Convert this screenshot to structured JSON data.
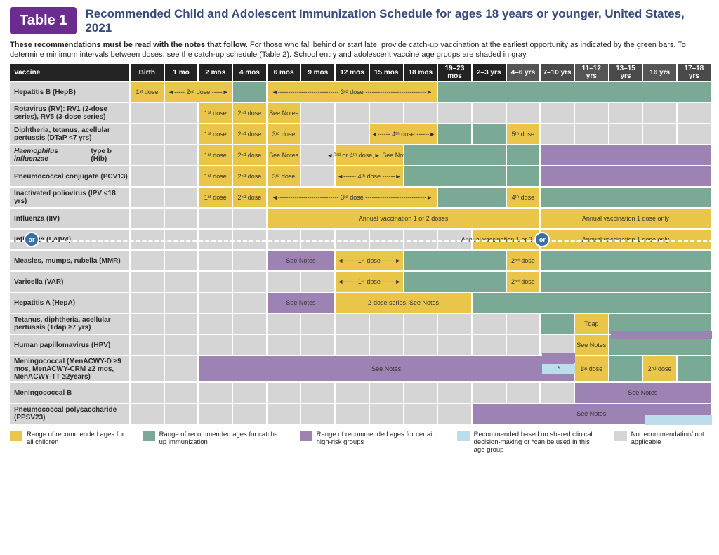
{
  "badge": "Table 1",
  "title": "Recommended Child and Adolescent Immunization Schedule for ages 18 years or younger, United States, 2021",
  "intro_bold": "These recommendations must be read with the notes that follow.",
  "intro_rest": " For those who fall behind or start late, provide catch-up vaccination at the earliest opportunity as indicated by the green bars. To determine minimum intervals between doses, see the catch-up schedule (Table 2). School entry and adolescent vaccine age groups are shaded in gray.",
  "colors": {
    "yellow": "#e9c649",
    "green": "#7aa995",
    "purple": "#9d83b3",
    "lblue": "#bcdde9",
    "gray": "#d5d5d5",
    "header_dark": "#232323",
    "badge_purple": "#6a2c8e",
    "title_blue": "#394b7a",
    "or_blue": "#3a6fa5"
  },
  "columns": [
    "Vaccine",
    "Birth",
    "1 mo",
    "2 mos",
    "4 mos",
    "6 mos",
    "9 mos",
    "12 mos",
    "15 mos",
    "18 mos",
    "19–23 mos",
    "2–3 yrs",
    "4–6 yrs",
    "7–10 yrs",
    "11–12 yrs",
    "13–15 yrs",
    "16 yrs",
    "17–18 yrs"
  ],
  "column_shade": [
    "",
    "",
    "",
    "",
    "",
    "",
    "",
    "",
    "",
    "",
    "",
    "",
    "s1",
    "s2",
    "s1",
    "s2",
    "s1",
    "s2"
  ],
  "vaccines": [
    {
      "name": "Hepatitis B (HepB)",
      "cells": [
        {
          "span": 1,
          "c": "yellow",
          "t": "1ˢᵗ dose"
        },
        {
          "span": 2,
          "c": "yellow",
          "t": "◄----- 2ⁿᵈ dose -----►"
        },
        {
          "span": 1,
          "c": "green"
        },
        {
          "span": 5,
          "c": "yellow",
          "t": "◄----------------------------- 3ʳᵈ dose -----------------------------►"
        },
        {
          "span": 8,
          "c": "green"
        }
      ]
    },
    {
      "name": "Rotavirus (RV): RV1 (2-dose series), RV5 (3-dose series)",
      "cells": [
        {
          "span": 1,
          "c": "gray"
        },
        {
          "span": 1,
          "c": "gray"
        },
        {
          "span": 1,
          "c": "yellow",
          "t": "1ˢᵗ dose"
        },
        {
          "span": 1,
          "c": "yellow",
          "t": "2ⁿᵈ dose"
        },
        {
          "span": 1,
          "c": "yellow",
          "t": "See Notes"
        },
        {
          "span": 1,
          "c": "gray"
        },
        {
          "span": 1,
          "c": "gray"
        },
        {
          "span": 1,
          "c": "gray"
        },
        {
          "span": 1,
          "c": "gray"
        },
        {
          "span": 1,
          "c": "gray"
        },
        {
          "span": 1,
          "c": "gray"
        },
        {
          "span": 1,
          "c": "gray"
        },
        {
          "span": 1,
          "c": "gray"
        },
        {
          "span": 1,
          "c": "gray"
        },
        {
          "span": 1,
          "c": "gray"
        },
        {
          "span": 1,
          "c": "gray"
        },
        {
          "span": 1,
          "c": "gray"
        }
      ]
    },
    {
      "name": "Diphtheria, tetanus, acellular pertussis (DTaP <7 yrs)",
      "cells": [
        {
          "span": 1,
          "c": "gray"
        },
        {
          "span": 1,
          "c": "gray"
        },
        {
          "span": 1,
          "c": "yellow",
          "t": "1ˢᵗ dose"
        },
        {
          "span": 1,
          "c": "yellow",
          "t": "2ⁿᵈ dose"
        },
        {
          "span": 1,
          "c": "yellow",
          "t": "3ʳᵈ dose"
        },
        {
          "span": 1,
          "c": "gray"
        },
        {
          "span": 1,
          "c": "gray"
        },
        {
          "span": 2,
          "c": "yellow",
          "t": "◄------ 4ᵗʰ dose ------►"
        },
        {
          "span": 1,
          "c": "green"
        },
        {
          "span": 1,
          "c": "green"
        },
        {
          "span": 1,
          "c": "yellow",
          "t": "5ᵗʰ dose"
        },
        {
          "span": 1,
          "c": "gray"
        },
        {
          "span": 1,
          "c": "gray"
        },
        {
          "span": 1,
          "c": "gray"
        },
        {
          "span": 1,
          "c": "gray"
        },
        {
          "span": 1,
          "c": "gray"
        }
      ]
    },
    {
      "name": "Haemophilus influenzae type b (Hib)",
      "italic": true,
      "cells": [
        {
          "span": 1,
          "c": "gray"
        },
        {
          "span": 1,
          "c": "gray"
        },
        {
          "span": 1,
          "c": "yellow",
          "t": "1ˢᵗ dose"
        },
        {
          "span": 1,
          "c": "yellow",
          "t": "2ⁿᵈ dose"
        },
        {
          "span": 1,
          "c": "yellow",
          "t": "See Notes"
        },
        {
          "span": 1,
          "c": "gray"
        },
        {
          "span": 2,
          "c": "yellow",
          "t": "◄3ʳᵈ or 4ᵗʰ dose,► See Notes"
        },
        {
          "span": 3,
          "c": "green"
        },
        {
          "span": 1,
          "c": "green"
        },
        {
          "span": 5,
          "c": "purple"
        }
      ]
    },
    {
      "name": "Pneumococcal conjugate (PCV13)",
      "cells": [
        {
          "span": 1,
          "c": "gray"
        },
        {
          "span": 1,
          "c": "gray"
        },
        {
          "span": 1,
          "c": "yellow",
          "t": "1ˢᵗ dose"
        },
        {
          "span": 1,
          "c": "yellow",
          "t": "2ⁿᵈ dose"
        },
        {
          "span": 1,
          "c": "yellow",
          "t": "3ʳᵈ dose"
        },
        {
          "span": 1,
          "c": "gray"
        },
        {
          "span": 2,
          "c": "yellow",
          "t": "◄------ 4ᵗʰ dose ------►"
        },
        {
          "span": 3,
          "c": "green"
        },
        {
          "span": 1,
          "c": "green"
        },
        {
          "span": 5,
          "c": "purple"
        }
      ]
    },
    {
      "name": "Inactivated poliovirus (IPV <18 yrs)",
      "cells": [
        {
          "span": 1,
          "c": "gray"
        },
        {
          "span": 1,
          "c": "gray"
        },
        {
          "span": 1,
          "c": "yellow",
          "t": "1ˢᵗ dose"
        },
        {
          "span": 1,
          "c": "yellow",
          "t": "2ⁿᵈ dose"
        },
        {
          "span": 5,
          "c": "yellow",
          "t": "◄----------------------------- 3ʳᵈ dose -----------------------------►"
        },
        {
          "span": 2,
          "c": "green"
        },
        {
          "span": 1,
          "c": "yellow",
          "t": "4ᵗʰ dose"
        },
        {
          "span": 5,
          "c": "green"
        }
      ]
    },
    {
      "name": "Influenza (IIV)",
      "cells": [
        {
          "span": 1,
          "c": "gray"
        },
        {
          "span": 1,
          "c": "gray"
        },
        {
          "span": 1,
          "c": "gray"
        },
        {
          "span": 1,
          "c": "gray"
        },
        {
          "span": 8,
          "c": "yellow",
          "t": "Annual vaccination 1 or 2 doses"
        },
        {
          "span": 5,
          "c": "yellow",
          "t": "Annual vaccination 1 dose only"
        }
      ]
    },
    {
      "name": "Influenza (LAIV4)",
      "cells": [
        {
          "span": 1,
          "c": "gray"
        },
        {
          "span": 1,
          "c": "gray"
        },
        {
          "span": 1,
          "c": "gray"
        },
        {
          "span": 1,
          "c": "gray"
        },
        {
          "span": 1,
          "c": "gray"
        },
        {
          "span": 1,
          "c": "gray"
        },
        {
          "span": 1,
          "c": "gray"
        },
        {
          "span": 1,
          "c": "gray"
        },
        {
          "span": 1,
          "c": "gray"
        },
        {
          "span": 1,
          "c": "gray"
        },
        {
          "span": 2,
          "c": "yellow",
          "t": "Annual vaccination 1 or 2 doses"
        },
        {
          "span": 5,
          "c": "yellow",
          "t": "Annual vaccination 1 dose only"
        }
      ]
    },
    {
      "name": "Measles, mumps, rubella (MMR)",
      "cells": [
        {
          "span": 1,
          "c": "gray"
        },
        {
          "span": 1,
          "c": "gray"
        },
        {
          "span": 1,
          "c": "gray"
        },
        {
          "span": 1,
          "c": "gray"
        },
        {
          "span": 2,
          "c": "purple",
          "t": "See Notes"
        },
        {
          "span": 2,
          "c": "yellow",
          "t": "◄------ 1ˢᵗ dose ------►"
        },
        {
          "span": 3,
          "c": "green"
        },
        {
          "span": 1,
          "c": "yellow",
          "t": "2ⁿᵈ dose"
        },
        {
          "span": 5,
          "c": "green"
        }
      ]
    },
    {
      "name": "Varicella (VAR)",
      "cells": [
        {
          "span": 1,
          "c": "gray"
        },
        {
          "span": 1,
          "c": "gray"
        },
        {
          "span": 1,
          "c": "gray"
        },
        {
          "span": 1,
          "c": "gray"
        },
        {
          "span": 1,
          "c": "gray"
        },
        {
          "span": 1,
          "c": "gray"
        },
        {
          "span": 2,
          "c": "yellow",
          "t": "◄------ 1ˢᵗ dose ------►"
        },
        {
          "span": 3,
          "c": "green"
        },
        {
          "span": 1,
          "c": "yellow",
          "t": "2ⁿᵈ dose"
        },
        {
          "span": 5,
          "c": "green"
        }
      ]
    },
    {
      "name": "Hepatitis A (HepA)",
      "cells": [
        {
          "span": 1,
          "c": "gray"
        },
        {
          "span": 1,
          "c": "gray"
        },
        {
          "span": 1,
          "c": "gray"
        },
        {
          "span": 1,
          "c": "gray"
        },
        {
          "span": 2,
          "c": "purple",
          "t": "See Notes"
        },
        {
          "span": 4,
          "c": "yellow",
          "t": "2-dose series, See Notes"
        },
        {
          "span": 7,
          "c": "green"
        }
      ]
    },
    {
      "name": "Tetanus, diphtheria, acellular pertussis (Tdap ≥7 yrs)",
      "cells": [
        {
          "span": 1,
          "c": "gray"
        },
        {
          "span": 1,
          "c": "gray"
        },
        {
          "span": 1,
          "c": "gray"
        },
        {
          "span": 1,
          "c": "gray"
        },
        {
          "span": 1,
          "c": "gray"
        },
        {
          "span": 1,
          "c": "gray"
        },
        {
          "span": 1,
          "c": "gray"
        },
        {
          "span": 1,
          "c": "gray"
        },
        {
          "span": 1,
          "c": "gray"
        },
        {
          "span": 1,
          "c": "gray"
        },
        {
          "span": 1,
          "c": "gray"
        },
        {
          "span": 1,
          "c": "gray"
        },
        {
          "span": 1,
          "c": "green"
        },
        {
          "span": 1,
          "c": "yellow",
          "t": "Tdap"
        },
        {
          "span": 3,
          "c": "green"
        }
      ],
      "split_last": {
        "top": "purple",
        "bottom": "green",
        "start": 14,
        "span": 3
      }
    },
    {
      "name": "Human papillomavirus (HPV)",
      "cells": [
        {
          "span": 1,
          "c": "gray"
        },
        {
          "span": 1,
          "c": "gray"
        },
        {
          "span": 1,
          "c": "gray"
        },
        {
          "span": 1,
          "c": "gray"
        },
        {
          "span": 1,
          "c": "gray"
        },
        {
          "span": 1,
          "c": "gray"
        },
        {
          "span": 1,
          "c": "gray"
        },
        {
          "span": 1,
          "c": "gray"
        },
        {
          "span": 1,
          "c": "gray"
        },
        {
          "span": 1,
          "c": "gray"
        },
        {
          "span": 1,
          "c": "gray"
        },
        {
          "span": 1,
          "c": "gray"
        },
        {
          "span": 1,
          "c": "gray"
        },
        {
          "span": 1,
          "c": "yellow",
          "t": "See Notes"
        },
        {
          "span": 3,
          "c": "green"
        }
      ],
      "hpv_star": true
    },
    {
      "name": "Meningococcal (MenACWY-D ≥9 mos, MenACWY-CRM ≥2 mos, MenACWY-TT ≥2years)",
      "tall": true,
      "cells": [
        {
          "span": 1,
          "c": "gray"
        },
        {
          "span": 1,
          "c": "gray"
        },
        {
          "span": 11,
          "c": "purple",
          "t": "See Notes"
        },
        {
          "span": 1,
          "c": "yellow",
          "t": "1ˢᵗ dose"
        },
        {
          "span": 1,
          "c": "green"
        },
        {
          "span": 1,
          "c": "yellow",
          "t": "2ⁿᵈ dose"
        },
        {
          "span": 1,
          "c": "green"
        }
      ]
    },
    {
      "name": "Meningococcal B",
      "cells": [
        {
          "span": 1,
          "c": "gray"
        },
        {
          "span": 1,
          "c": "gray"
        },
        {
          "span": 1,
          "c": "gray"
        },
        {
          "span": 1,
          "c": "gray"
        },
        {
          "span": 1,
          "c": "gray"
        },
        {
          "span": 1,
          "c": "gray"
        },
        {
          "span": 1,
          "c": "gray"
        },
        {
          "span": 1,
          "c": "gray"
        },
        {
          "span": 1,
          "c": "gray"
        },
        {
          "span": 1,
          "c": "gray"
        },
        {
          "span": 1,
          "c": "gray"
        },
        {
          "span": 1,
          "c": "gray"
        },
        {
          "span": 1,
          "c": "gray"
        },
        {
          "span": 4,
          "c": "purple",
          "t": "See Notes"
        }
      ],
      "menb_blue": true
    },
    {
      "name": "Pneumococcal polysaccharide (PPSV23)",
      "cells": [
        {
          "span": 1,
          "c": "gray"
        },
        {
          "span": 1,
          "c": "gray"
        },
        {
          "span": 1,
          "c": "gray"
        },
        {
          "span": 1,
          "c": "gray"
        },
        {
          "span": 1,
          "c": "gray"
        },
        {
          "span": 1,
          "c": "gray"
        },
        {
          "span": 1,
          "c": "gray"
        },
        {
          "span": 1,
          "c": "gray"
        },
        {
          "span": 1,
          "c": "gray"
        },
        {
          "span": 1,
          "c": "gray"
        },
        {
          "span": 7,
          "c": "purple",
          "t": "See Notes"
        }
      ]
    }
  ],
  "legend": [
    {
      "c": "yellow",
      "t": "Range of recommended ages for all children"
    },
    {
      "c": "green",
      "t": "Range of recommended ages for catch-up immunization"
    },
    {
      "c": "purple",
      "t": "Range of recommended ages for certain high-risk groups"
    },
    {
      "c": "lblue",
      "t": "Recommended based on shared clinical decision-making or *can be used in this age group"
    },
    {
      "c": "gray",
      "t": "No recommendation/ not applicable"
    }
  ],
  "or_label": "or"
}
